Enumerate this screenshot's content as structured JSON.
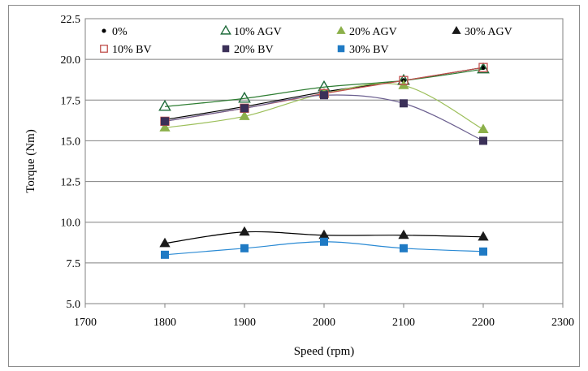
{
  "chart_data": {
    "type": "scatter",
    "title": "",
    "xlabel": "Speed (rpm)",
    "ylabel": "Torque (Nm)",
    "xlim": [
      1700,
      2300
    ],
    "ylim": [
      5.0,
      22.5
    ],
    "xticks": [
      1700,
      1800,
      1900,
      2000,
      2100,
      2200,
      2300
    ],
    "yticks": [
      5.0,
      7.5,
      10.0,
      12.5,
      15.0,
      17.5,
      20.0,
      22.5
    ],
    "ytick_labels": [
      "5.0",
      "7.5",
      "10.0",
      "12.5",
      "15.0",
      "17.5",
      "20.0",
      "22.5"
    ],
    "grid": "horizontal",
    "legend_position": "top",
    "series": [
      {
        "name": "0%",
        "marker": "circle",
        "color": "#000000",
        "line_color": "#000000",
        "x": [
          1800,
          1900,
          2000,
          2100,
          2200
        ],
        "y": [
          16.3,
          17.1,
          18.0,
          18.7,
          19.5
        ]
      },
      {
        "name": "10% AGV",
        "marker": "triangle-open",
        "color": "#1f6b3a",
        "line_color": "#2e7d32",
        "x": [
          1800,
          1900,
          2000,
          2100,
          2200
        ],
        "y": [
          17.1,
          17.6,
          18.3,
          18.7,
          19.4
        ]
      },
      {
        "name": "20% AGV",
        "marker": "triangle",
        "color": "#8cb04a",
        "line_color": "#9cbf5a",
        "x": [
          1800,
          1900,
          2000,
          2100,
          2200
        ],
        "y": [
          15.8,
          16.5,
          17.9,
          18.4,
          15.7
        ]
      },
      {
        "name": "30% AGV",
        "marker": "triangle",
        "color": "#1a1a1a",
        "line_color": "#000000",
        "x": [
          1800,
          1900,
          2000,
          2100,
          2200
        ],
        "y": [
          8.7,
          9.4,
          9.2,
          9.2,
          9.1
        ]
      },
      {
        "name": "10% BV",
        "marker": "square-open",
        "color": "#c0504d",
        "line_color": "#c0504d",
        "x": [
          1800,
          1900,
          2000,
          2100,
          2200
        ],
        "y": [
          16.2,
          17.0,
          17.9,
          18.7,
          19.5
        ]
      },
      {
        "name": "20% BV",
        "marker": "square",
        "color": "#3b3058",
        "line_color": "#6b5f8f",
        "x": [
          1800,
          1900,
          2000,
          2100,
          2200
        ],
        "y": [
          16.2,
          17.0,
          17.8,
          17.3,
          15.0
        ]
      },
      {
        "name": "30% BV",
        "marker": "square",
        "color": "#1f7ac4",
        "line_color": "#2a8ad4",
        "x": [
          1800,
          1900,
          2000,
          2100,
          2200
        ],
        "y": [
          8.0,
          8.4,
          8.8,
          8.4,
          8.2
        ]
      }
    ]
  }
}
